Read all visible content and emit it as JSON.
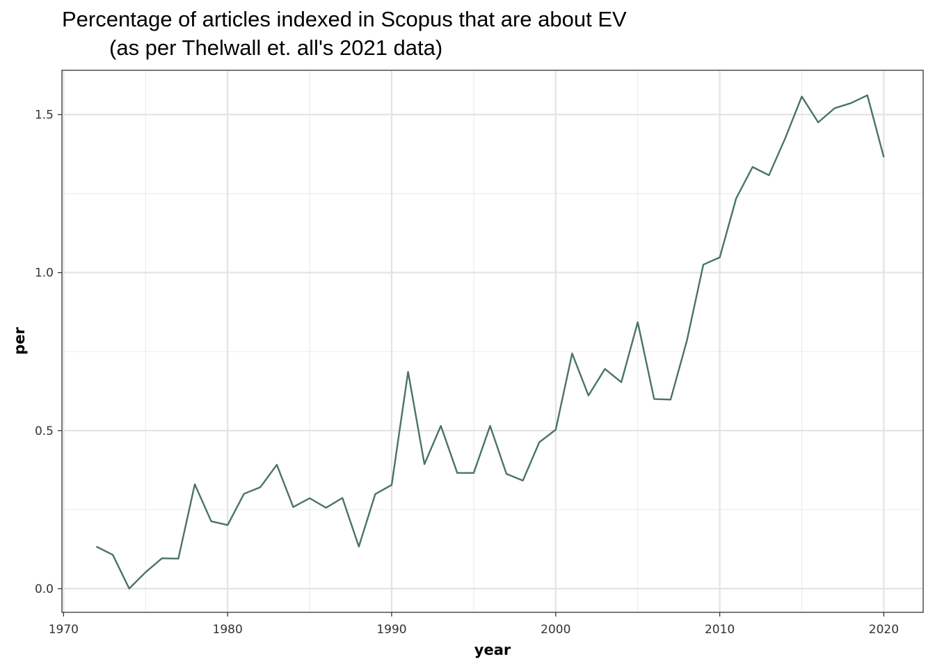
{
  "chart_data": {
    "type": "line",
    "title_line1": "Percentage of articles indexed in Scopus that are about EV",
    "title_line2": "(as per Thelwall et. all's 2021 data)",
    "xlabel": "year",
    "ylabel": "per",
    "xlim": [
      1969.9,
      2022.4
    ],
    "ylim": [
      -0.075,
      1.64
    ],
    "x_ticks": [
      1970,
      1980,
      1990,
      2000,
      2010,
      2020
    ],
    "x_tick_labels": [
      "1970",
      "1980",
      "1990",
      "2000",
      "2010",
      "2020"
    ],
    "y_ticks": [
      0.0,
      0.5,
      1.0,
      1.5
    ],
    "y_tick_labels": [
      "0.0",
      "0.5",
      "1.0",
      "1.5"
    ],
    "grid": true,
    "line_color": "#4a7366",
    "series": [
      {
        "x": [
          1972,
          1973,
          1974,
          1975,
          1976,
          1977,
          1978,
          1979,
          1980,
          1981,
          1982,
          1983,
          1984,
          1985,
          1986,
          1987,
          1988,
          1989,
          1990,
          1991,
          1992,
          1993,
          1994,
          1995,
          1996,
          1997,
          1998,
          1999,
          2000,
          2001,
          2002,
          2003,
          2004,
          2005,
          2006,
          2007,
          2008,
          2009,
          2010,
          2011,
          2012,
          2013,
          2014,
          2015,
          2016,
          2017,
          2018,
          2019,
          2020
        ],
        "values": [
          0.133,
          0.107,
          0.0,
          0.052,
          0.096,
          0.095,
          0.33,
          0.213,
          0.201,
          0.3,
          0.321,
          0.392,
          0.258,
          0.286,
          0.256,
          0.287,
          0.133,
          0.299,
          0.328,
          0.686,
          0.394,
          0.515,
          0.366,
          0.366,
          0.515,
          0.363,
          0.342,
          0.463,
          0.503,
          0.744,
          0.611,
          0.695,
          0.653,
          0.843,
          0.6,
          0.598,
          0.785,
          1.025,
          1.048,
          1.235,
          1.334,
          1.308,
          1.426,
          1.557,
          1.475,
          1.52,
          1.536,
          1.561,
          1.365
        ]
      }
    ]
  }
}
